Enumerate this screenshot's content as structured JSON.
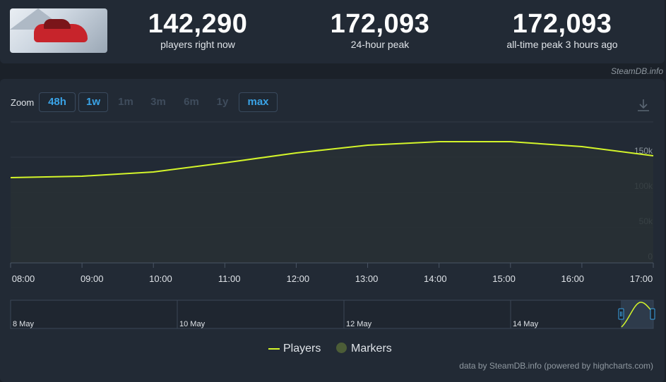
{
  "header": {
    "stats": [
      {
        "value": "142,290",
        "label": "players right now"
      },
      {
        "value": "172,093",
        "label": "24-hour peak"
      },
      {
        "value": "172,093",
        "label": "all-time peak 3 hours ago"
      }
    ],
    "credit": "SteamDB.info"
  },
  "zoom": {
    "label": "Zoom",
    "buttons": [
      {
        "label": "48h",
        "active": true
      },
      {
        "label": "1w",
        "active": true
      },
      {
        "label": "1m",
        "active": false
      },
      {
        "label": "3m",
        "active": false
      },
      {
        "label": "6m",
        "active": false
      },
      {
        "label": "1y",
        "active": false
      },
      {
        "label": "max",
        "active": true
      }
    ]
  },
  "colors": {
    "line": "#d4f52a",
    "marker": "#4c5d37",
    "accent": "#3aa3e6"
  },
  "icons": {
    "download": "download-icon"
  },
  "chart_data": {
    "type": "area",
    "title": "",
    "xlabel": "",
    "ylabel": "",
    "x_ticks": [
      "08:00",
      "09:00",
      "10:00",
      "11:00",
      "12:00",
      "13:00",
      "14:00",
      "15:00",
      "16:00",
      "17:00"
    ],
    "y_ticks": [
      "0",
      "50k",
      "100k",
      "150k"
    ],
    "ylim": [
      0,
      200000
    ],
    "grid": true,
    "series": [
      {
        "name": "Players",
        "x": [
          "08:00",
          "09:00",
          "10:00",
          "11:00",
          "12:00",
          "13:00",
          "14:00",
          "15:00",
          "16:00",
          "17:00"
        ],
        "values": [
          121000,
          123000,
          129000,
          142000,
          156000,
          167000,
          172000,
          172000,
          165000,
          152000
        ]
      }
    ],
    "navigator": {
      "labels": [
        "8 May",
        "10 May",
        "12 May",
        "14 May"
      ]
    },
    "legend": {
      "items": [
        "Players",
        "Markers"
      ],
      "position": "bottom-center"
    }
  },
  "footer": {
    "credit": "data by SteamDB.info (powered by highcharts.com)"
  }
}
